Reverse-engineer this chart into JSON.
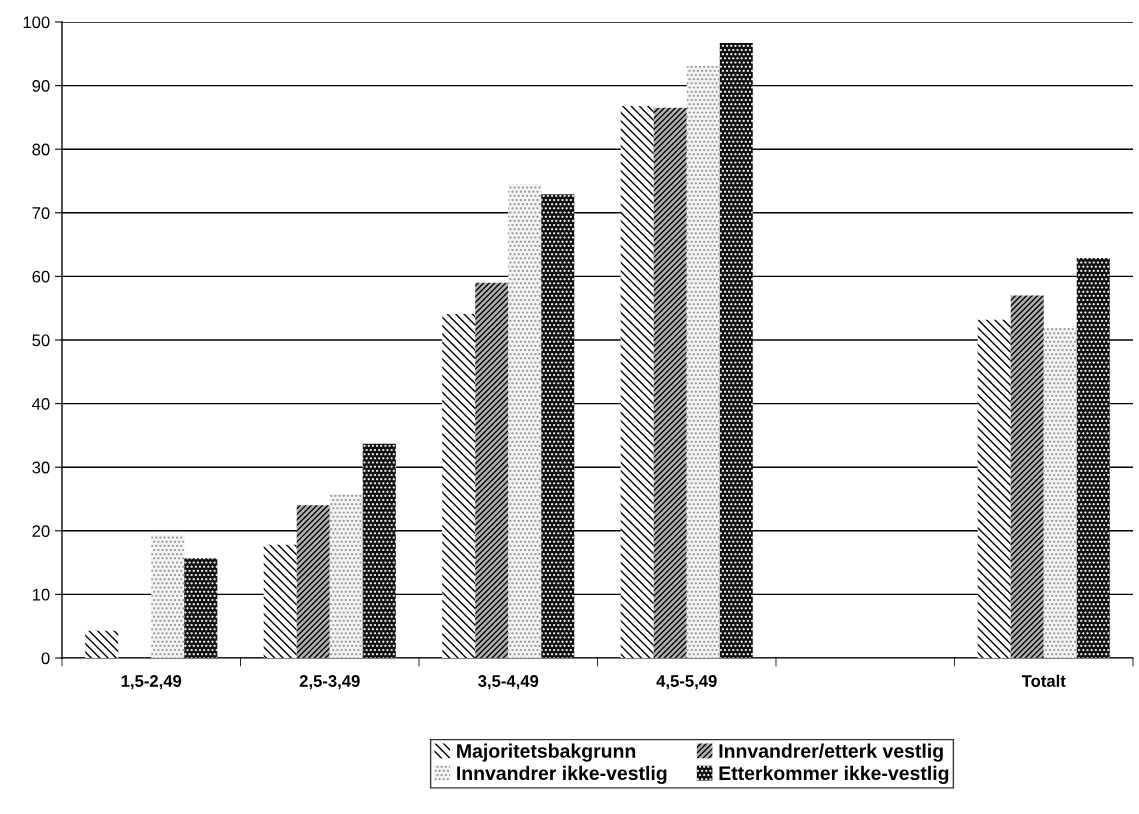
{
  "chart_data": {
    "type": "bar",
    "categories": [
      "1,5-2,49",
      "2,5-3,49",
      "3,5-4,49",
      "4,5-5,49",
      null,
      "Totalt"
    ],
    "series": [
      {
        "name": "Majoritetsbakgrunn",
        "color": "#ffffff",
        "values": [
          4.3,
          17.8,
          54.1,
          86.8,
          null,
          53.2
        ]
      },
      {
        "name": "Innvandrer/etterk vestlig",
        "color": "#b0b0b0",
        "values": [
          null,
          24.0,
          59.0,
          86.5,
          null,
          57.0
        ]
      },
      {
        "name": "Innvandrer ikke-vestlig",
        "color": "#f4f4f4",
        "values": [
          19.3,
          25.8,
          74.5,
          93.1,
          null,
          51.9
        ]
      },
      {
        "name": "Etterkommer ikke-vestlig",
        "color": "#111111",
        "values": [
          15.7,
          33.7,
          72.9,
          96.7,
          null,
          62.9
        ]
      }
    ],
    "ylim": [
      0,
      100
    ],
    "yticks": [
      0,
      10,
      20,
      30,
      40,
      50,
      60,
      70,
      80,
      90,
      100
    ],
    "grid": "y",
    "legend": "bottom"
  }
}
